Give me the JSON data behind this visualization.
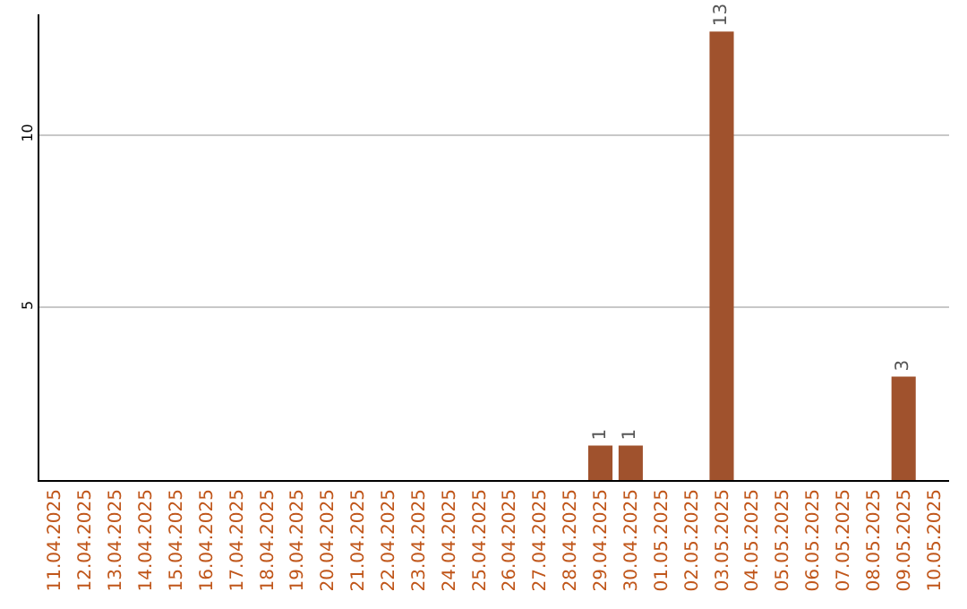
{
  "chart_data": {
    "type": "bar",
    "categories": [
      "11.04.2025",
      "12.04.2025",
      "13.04.2025",
      "14.04.2025",
      "15.04.2025",
      "16.04.2025",
      "17.04.2025",
      "18.04.2025",
      "19.04.2025",
      "20.04.2025",
      "21.04.2025",
      "22.04.2025",
      "23.04.2025",
      "24.04.2025",
      "25.04.2025",
      "26.04.2025",
      "27.04.2025",
      "28.04.2025",
      "29.04.2025",
      "30.04.2025",
      "01.05.2025",
      "02.05.2025",
      "03.05.2025",
      "04.05.2025",
      "05.05.2025",
      "06.05.2025",
      "07.05.2025",
      "08.05.2025",
      "09.05.2025",
      "10.05.2025"
    ],
    "values": [
      0,
      0,
      0,
      0,
      0,
      0,
      0,
      0,
      0,
      0,
      0,
      0,
      0,
      0,
      0,
      0,
      0,
      0,
      1,
      1,
      0,
      0,
      13,
      0,
      0,
      0,
      0,
      0,
      3,
      0
    ],
    "value_labels": [
      null,
      null,
      null,
      null,
      null,
      null,
      null,
      null,
      null,
      null,
      null,
      null,
      null,
      null,
      null,
      null,
      null,
      null,
      "1",
      "1",
      null,
      null,
      "13",
      null,
      null,
      null,
      null,
      null,
      "3",
      null
    ],
    "color": "#a0522d",
    "ylim": [
      0,
      13.5
    ],
    "yticks": [
      5,
      10
    ],
    "grid": "y",
    "legend": false
  }
}
